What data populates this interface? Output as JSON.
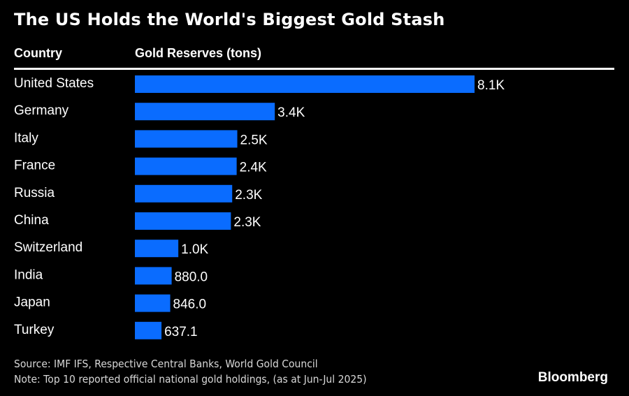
{
  "chart_data": {
    "type": "bar",
    "orientation": "horizontal",
    "title": "The US Holds the World's Biggest Gold Stash",
    "category_header": "Country",
    "value_header": "Gold Reserves (tons)",
    "categories": [
      "United States",
      "Germany",
      "Italy",
      "France",
      "Russia",
      "China",
      "Switzerland",
      "India",
      "Japan",
      "Turkey"
    ],
    "values": [
      8133,
      3350,
      2452,
      2437,
      2330,
      2299,
      1040,
      880.0,
      846.0,
      637.1
    ],
    "value_labels": [
      "8.1K",
      "3.4K",
      "2.5K",
      "2.4K",
      "2.3K",
      "2.3K",
      "1.0K",
      "880.0",
      "846.0",
      "637.1"
    ],
    "xlim": [
      0,
      8133
    ],
    "grid": false,
    "legend": "none",
    "bar_color": "#0a6cff"
  },
  "footer": {
    "source": "Source: IMF IFS, Respective Central Banks, World Gold Council",
    "note": "Note: Top 10 reported official national gold holdings, (as at Jun-Jul 2025)",
    "brand": "Bloomberg"
  }
}
